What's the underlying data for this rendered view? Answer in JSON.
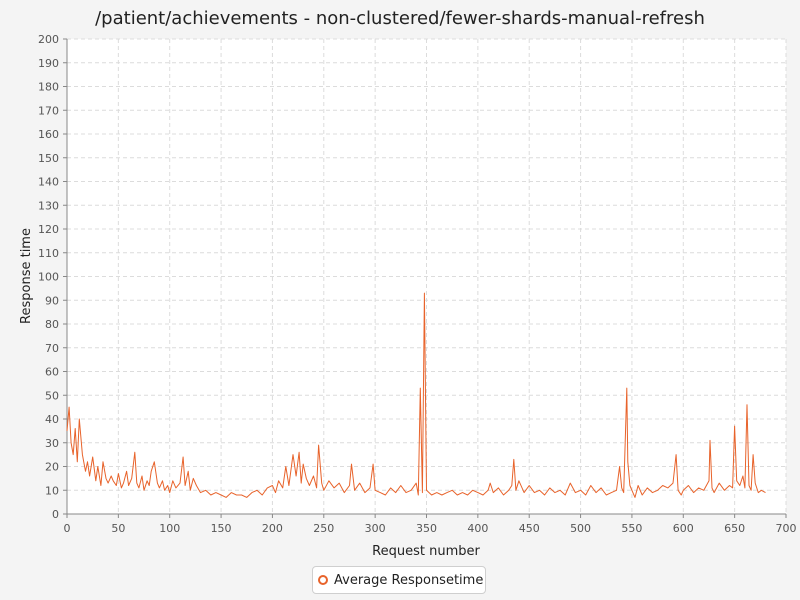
{
  "chart_data": {
    "type": "line",
    "title": "/patient/achievements - non-clustered/fewer-shards-manual-refresh",
    "xlabel": "Request number",
    "ylabel": "Response time",
    "xlim": [
      0,
      700
    ],
    "ylim": [
      0,
      200
    ],
    "x_ticks": [
      0,
      50,
      100,
      150,
      200,
      250,
      300,
      350,
      400,
      450,
      500,
      550,
      600,
      650,
      700
    ],
    "y_ticks": [
      0,
      10,
      20,
      30,
      40,
      50,
      60,
      70,
      80,
      90,
      100,
      110,
      120,
      130,
      140,
      150,
      160,
      170,
      180,
      190,
      200
    ],
    "grid": true,
    "legend": "bottom-center",
    "series": [
      {
        "name": "Average Responsetime",
        "color": "#e8632b",
        "x": [
          0,
          2,
          4,
          6,
          8,
          10,
          12,
          15,
          18,
          20,
          22,
          25,
          28,
          30,
          33,
          35,
          38,
          40,
          43,
          45,
          48,
          50,
          53,
          55,
          58,
          60,
          63,
          66,
          68,
          70,
          73,
          75,
          78,
          80,
          82,
          85,
          88,
          90,
          93,
          95,
          98,
          100,
          103,
          106,
          110,
          113,
          115,
          118,
          120,
          123,
          126,
          130,
          135,
          140,
          145,
          150,
          155,
          160,
          165,
          170,
          175,
          180,
          185,
          190,
          195,
          200,
          203,
          206,
          210,
          213,
          216,
          220,
          223,
          226,
          228,
          230,
          233,
          236,
          240,
          243,
          245,
          248,
          250,
          255,
          260,
          265,
          270,
          275,
          277,
          280,
          285,
          290,
          295,
          298,
          300,
          305,
          310,
          315,
          320,
          325,
          330,
          335,
          340,
          342,
          344,
          346,
          348,
          350,
          355,
          360,
          365,
          370,
          375,
          380,
          385,
          390,
          395,
          400,
          405,
          410,
          412,
          415,
          420,
          425,
          430,
          433,
          435,
          437,
          440,
          445,
          450,
          455,
          460,
          465,
          470,
          475,
          480,
          485,
          490,
          495,
          500,
          505,
          510,
          515,
          520,
          525,
          530,
          535,
          538,
          540,
          542,
          545,
          546,
          548,
          550,
          553,
          556,
          560,
          565,
          570,
          575,
          580,
          585,
          590,
          593,
          595,
          598,
          600,
          605,
          610,
          615,
          620,
          625,
          626,
          628,
          630,
          635,
          640,
          645,
          648,
          650,
          652,
          655,
          658,
          660,
          662,
          664,
          666,
          668,
          670,
          673,
          676,
          680
        ],
        "y": [
          35,
          45,
          30,
          25,
          36,
          22,
          40,
          25,
          18,
          22,
          16,
          24,
          14,
          20,
          12,
          22,
          15,
          13,
          16,
          14,
          12,
          17,
          11,
          13,
          18,
          12,
          15,
          26,
          13,
          11,
          16,
          10,
          14,
          12,
          18,
          22,
          13,
          11,
          14,
          10,
          12,
          9,
          14,
          11,
          13,
          24,
          12,
          18,
          10,
          15,
          12,
          9,
          10,
          8,
          9,
          8,
          7,
          9,
          8,
          8,
          7,
          9,
          10,
          8,
          11,
          12,
          9,
          14,
          11,
          20,
          12,
          25,
          16,
          26,
          13,
          21,
          15,
          12,
          16,
          11,
          29,
          13,
          10,
          14,
          11,
          13,
          9,
          12,
          21,
          10,
          13,
          9,
          11,
          21,
          10,
          9,
          8,
          11,
          9,
          12,
          9,
          10,
          13,
          8,
          53,
          9,
          93,
          10,
          8,
          9,
          8,
          9,
          10,
          8,
          9,
          8,
          10,
          9,
          8,
          10,
          13,
          9,
          11,
          8,
          10,
          12,
          23,
          10,
          14,
          9,
          12,
          9,
          10,
          8,
          11,
          9,
          10,
          8,
          13,
          9,
          10,
          8,
          12,
          9,
          11,
          8,
          9,
          10,
          20,
          11,
          9,
          53,
          22,
          12,
          10,
          7,
          12,
          8,
          11,
          9,
          10,
          12,
          11,
          13,
          25,
          10,
          8,
          10,
          12,
          9,
          11,
          10,
          14,
          31,
          11,
          9,
          13,
          10,
          12,
          11,
          37,
          14,
          12,
          16,
          11,
          46,
          12,
          10,
          25,
          13,
          9,
          10,
          9
        ]
      }
    ]
  }
}
